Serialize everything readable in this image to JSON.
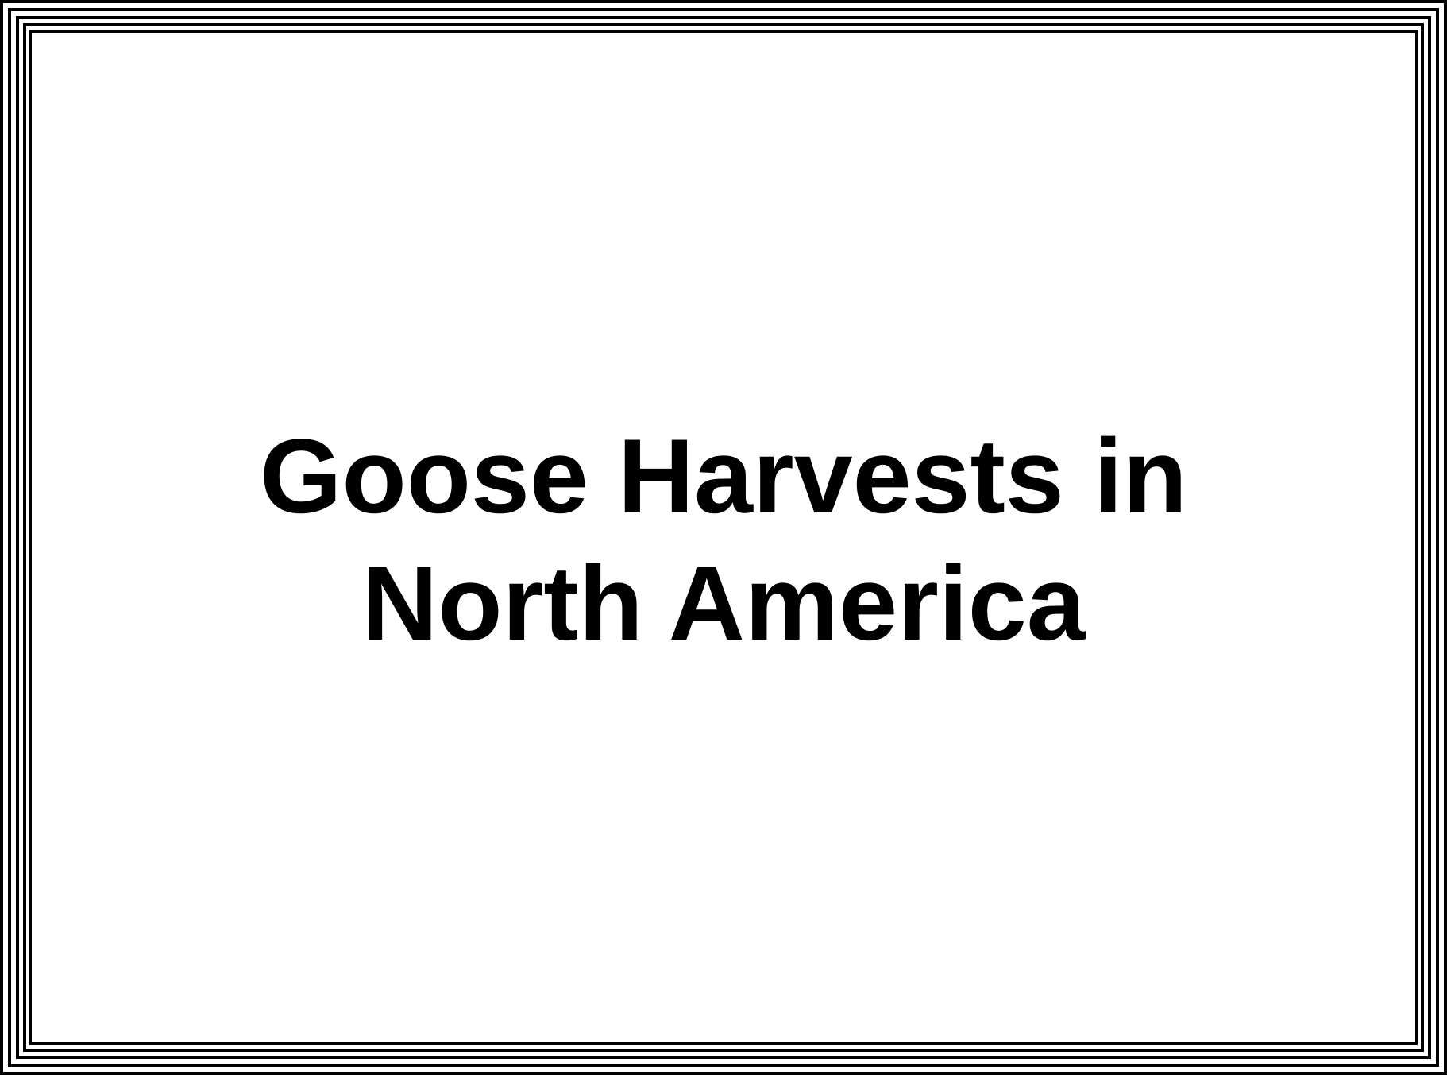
{
  "slide": {
    "title_lines": [
      "Goose Harvests in",
      "North America"
    ]
  },
  "colors": {
    "background": "#ffffff",
    "text": "#000000",
    "frame": "#000000"
  }
}
